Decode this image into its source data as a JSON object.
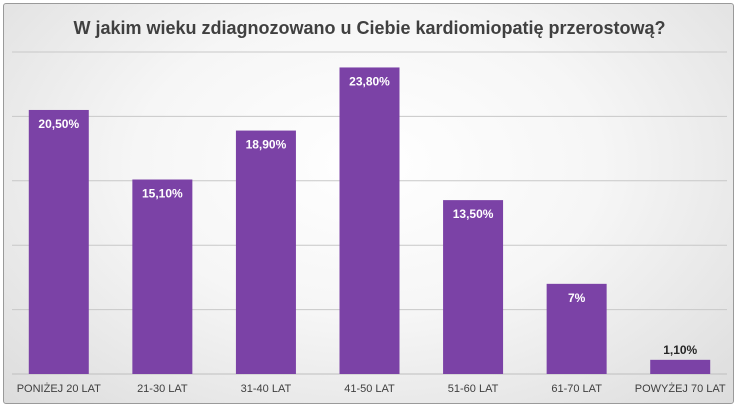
{
  "chart_data": {
    "type": "bar",
    "title": "W jakim wieku zdiagnozowano u Ciebie kardiomiopatię przerostową?",
    "categories": [
      "PONIŻEJ 20 LAT",
      "21-30 LAT",
      "31-40 LAT",
      "41-50 LAT",
      "51-60 LAT",
      "61-70 LAT",
      "POWYŻEJ 70 LAT"
    ],
    "values": [
      20.5,
      15.1,
      18.9,
      23.8,
      13.5,
      7,
      1.1
    ],
    "data_labels": [
      "20,50%",
      "15,10%",
      "18,90%",
      "23,80%",
      "13,50%",
      "7%",
      "1,10%"
    ],
    "ylim": [
      0,
      25
    ],
    "grid": true,
    "legend": "none",
    "bar_color": "#7b42a6",
    "label_color_inside": "#ffffff",
    "label_color_outside": "#262626"
  }
}
